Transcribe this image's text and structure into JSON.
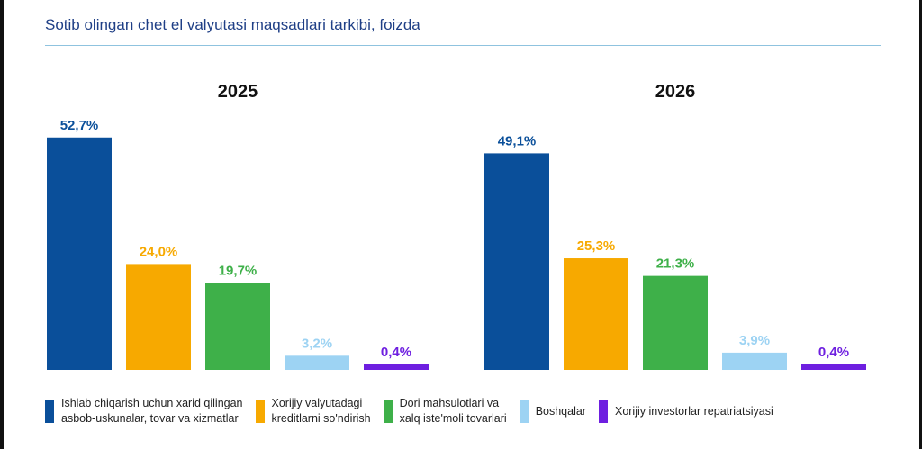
{
  "chart_data": {
    "type": "bar",
    "title": "Sotib olingan chet el valyutasi maqsadlari tarkibi, foizda",
    "ylim": [
      0,
      55
    ],
    "categories": [
      "Ishlab chiqarish uchun xarid qilingan\nasbob-uskunalar, tovar va xizmatlar",
      "Xorijiy valyutadagi\nkreditlarni so'ndirish",
      "Dori mahsulotlari va\nxalq iste'moli tovarlari",
      "Boshqalar",
      "Xorijiy investorlar repatriatsiyasi"
    ],
    "colors": [
      "#0a4f9a",
      "#f7a900",
      "#3eb049",
      "#9dd3f3",
      "#6e1fe0"
    ],
    "groups": [
      {
        "name": "2025",
        "values": [
          52.7,
          24.0,
          19.7,
          3.2,
          0.4
        ],
        "labels": [
          "52,7%",
          "24,0%",
          "19,7%",
          "3,2%",
          "0,4%"
        ]
      },
      {
        "name": "2026",
        "values": [
          49.1,
          25.3,
          21.3,
          3.9,
          0.4
        ],
        "labels": [
          "49,1%",
          "25,3%",
          "21,3%",
          "3,9%",
          "0,4%"
        ]
      }
    ],
    "legend_position": "bottom"
  }
}
